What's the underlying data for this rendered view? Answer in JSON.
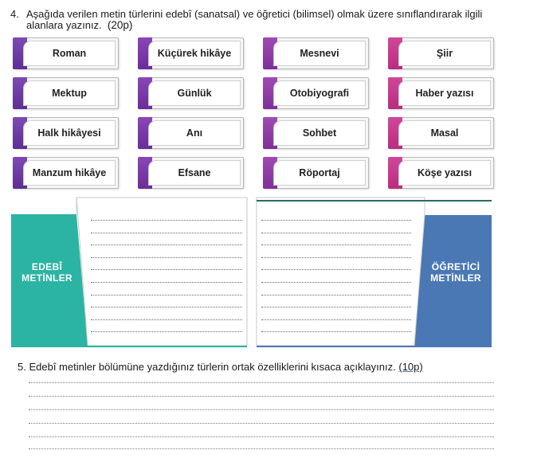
{
  "question4": {
    "number": "4.",
    "text_line1": "Aşağıda verilen metin türlerini edebî (sanatsal) ve öğretici (bilimsel) olmak üzere sınıflandırarak ilgili",
    "text_line2": "alanlara yazınız.",
    "points": "(20p)"
  },
  "cards": [
    [
      "Roman",
      "Küçürek hikâye",
      "Mesnevi",
      "Şiir"
    ],
    [
      "Mektup",
      "Günlük",
      "Otobiyografi",
      "Haber yazısı"
    ],
    [
      "Halk hikâyesi",
      "Anı",
      "Sohbet",
      "Masal"
    ],
    [
      "Manzum hikâye",
      "Efsane",
      "Röportaj",
      "Köşe yazısı"
    ]
  ],
  "diagram": {
    "left_label_1": "EDEBÎ",
    "left_label_2": "METİNLER",
    "right_label_1": "ÖĞRETİCİ",
    "right_label_2": "METİNLER",
    "left_color": "#2bb3a3",
    "right_color": "#4a78b5"
  },
  "question5": {
    "text": "5. Edebî metinler bölümüne yazdığınız türlerin ortak özelliklerini kısaca açıklayınız.",
    "points": "(10p)"
  }
}
